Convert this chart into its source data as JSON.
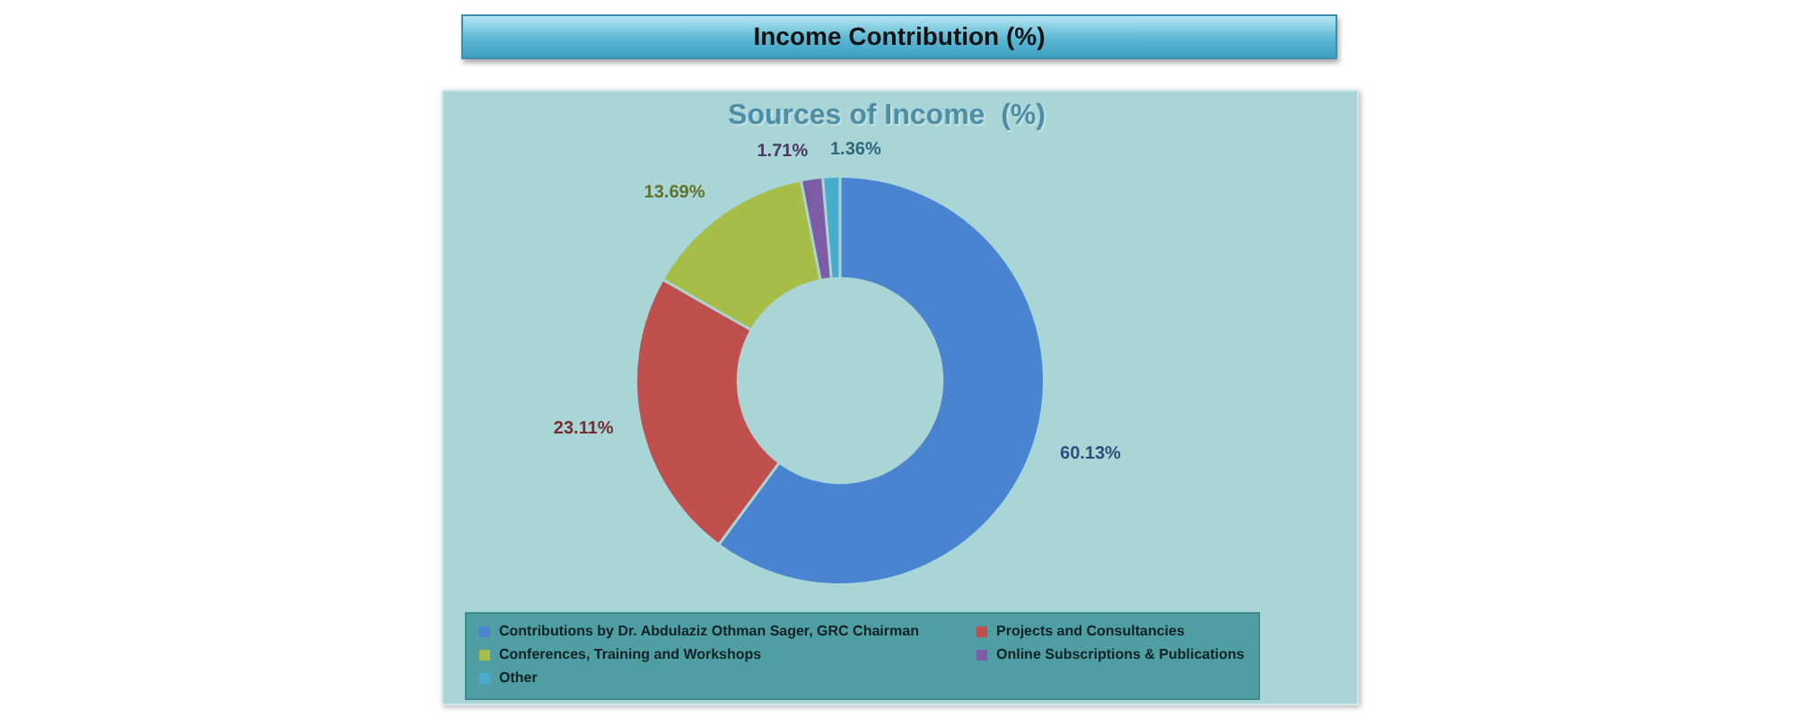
{
  "chart_data": {
    "type": "donut",
    "title": "Income Contribution (%)",
    "subtitle": "Sources of Income  (%)",
    "categories": [
      "Contributions by Dr. Abdulaziz Othman Sager, GRC Chairman",
      "Projects and Consultancies",
      "Conferences, Training and Workshops",
      "Online Subscriptions & Publications",
      "Other"
    ],
    "values": [
      60.13,
      23.11,
      13.69,
      1.71,
      1.36
    ],
    "colors": [
      "#4a84d0",
      "#c0504d",
      "#a6bd47",
      "#7c5ca4",
      "#4aaccc"
    ],
    "value_labels": [
      "60.13%",
      "23.11%",
      "13.69%",
      "1.71%",
      "1.36%"
    ],
    "legend": "bottom"
  }
}
